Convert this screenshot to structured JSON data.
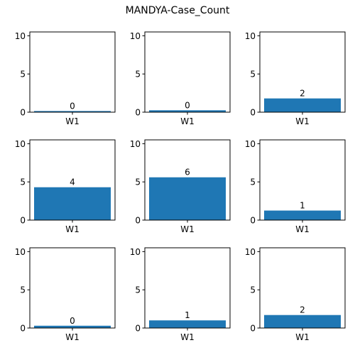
{
  "chart_data": {
    "type": "bar",
    "title": "MANDYA-Case_Count",
    "layout": "3x3 grid of subplots",
    "bar_color": "#1f77b4",
    "ylim": [
      0,
      10.5
    ],
    "yticks": [
      0,
      5,
      10
    ],
    "subplots": [
      {
        "categories": [
          "W1"
        ],
        "values": [
          0.15
        ],
        "data_label": "0"
      },
      {
        "categories": [
          "W1"
        ],
        "values": [
          0.25
        ],
        "data_label": "0"
      },
      {
        "categories": [
          "W1"
        ],
        "values": [
          1.8
        ],
        "data_label": "2"
      },
      {
        "categories": [
          "W1"
        ],
        "values": [
          4.3
        ],
        "data_label": "4"
      },
      {
        "categories": [
          "W1"
        ],
        "values": [
          5.6
        ],
        "data_label": "6"
      },
      {
        "categories": [
          "W1"
        ],
        "values": [
          1.25
        ],
        "data_label": "1"
      },
      {
        "categories": [
          "W1"
        ],
        "values": [
          0.3
        ],
        "data_label": "0"
      },
      {
        "categories": [
          "W1"
        ],
        "values": [
          1.0
        ],
        "data_label": "1"
      },
      {
        "categories": [
          "W1"
        ],
        "values": [
          1.7
        ],
        "data_label": "2"
      }
    ]
  }
}
